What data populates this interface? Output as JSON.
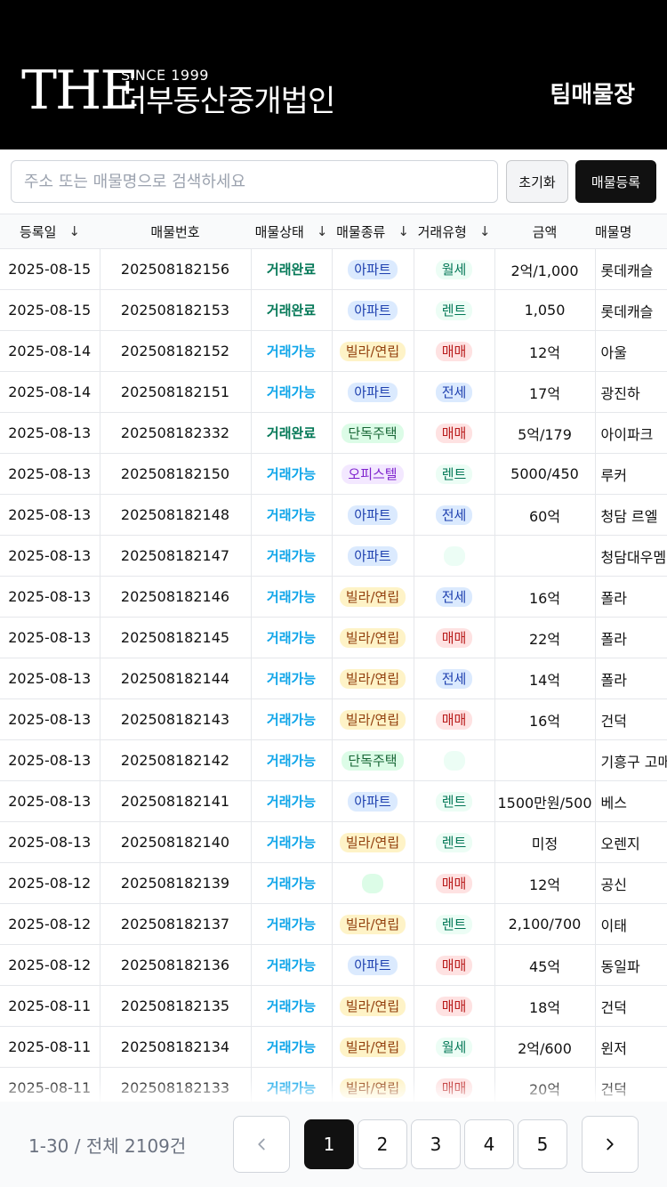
{
  "header": {
    "logo_mark": "THE",
    "logo_since": "SINCE 1999",
    "logo_name": "더부동산중개법인",
    "title": "팀매물장"
  },
  "toolbar": {
    "search_placeholder": "주소 또는 매물명으로 검색하세요",
    "reset_label": "초기화",
    "add_label": "매물등록"
  },
  "table": {
    "columns": [
      {
        "label": "등록일",
        "sort_icon": "arrow-down-icon"
      },
      {
        "label": "매물번호"
      },
      {
        "label": "매물상태",
        "sort_icon": "arrow-down-icon"
      },
      {
        "label": "매물종류",
        "sort_icon": "arrow-down-icon"
      },
      {
        "label": "거래유형",
        "sort_icon": "arrow-down-icon"
      },
      {
        "label": "금액"
      },
      {
        "label": "매물명"
      }
    ],
    "rows": [
      {
        "date": "2025-08-15",
        "id": "202508182156",
        "status": "거래완료",
        "kind": "아파트",
        "type": "월세",
        "price": "2억/1,000",
        "name": "롯데캐슬"
      },
      {
        "date": "2025-08-15",
        "id": "202508182153",
        "status": "거래완료",
        "kind": "아파트",
        "type": "렌트",
        "price": "1,050",
        "name": "롯데캐슬"
      },
      {
        "date": "2025-08-14",
        "id": "202508182152",
        "status": "거래가능",
        "kind": "빌라/연립",
        "type": "매매",
        "price": "12억",
        "name": "아울"
      },
      {
        "date": "2025-08-14",
        "id": "202508182151",
        "status": "거래가능",
        "kind": "아파트",
        "type": "전세",
        "price": "17억",
        "name": "광진하"
      },
      {
        "date": "2025-08-13",
        "id": "202508182332",
        "status": "거래완료",
        "kind": "단독주택",
        "type": "매매",
        "price": "5억/179",
        "name": "아이파크"
      },
      {
        "date": "2025-08-13",
        "id": "202508182150",
        "status": "거래가능",
        "kind": "오피스텔",
        "type": "렌트",
        "price": "5000/450",
        "name": "루커"
      },
      {
        "date": "2025-08-13",
        "id": "202508182148",
        "status": "거래가능",
        "kind": "아파트",
        "type": "전세",
        "price": "60억",
        "name": "청담 르엘"
      },
      {
        "date": "2025-08-13",
        "id": "202508182147",
        "status": "거래가능",
        "kind": "아파트",
        "type": "",
        "price": "",
        "name": "청담대우멤버"
      },
      {
        "date": "2025-08-13",
        "id": "202508182146",
        "status": "거래가능",
        "kind": "빌라/연립",
        "type": "전세",
        "price": "16억",
        "name": "폴라"
      },
      {
        "date": "2025-08-13",
        "id": "202508182145",
        "status": "거래가능",
        "kind": "빌라/연립",
        "type": "매매",
        "price": "22억",
        "name": "폴라"
      },
      {
        "date": "2025-08-13",
        "id": "202508182144",
        "status": "거래가능",
        "kind": "빌라/연립",
        "type": "전세",
        "price": "14억",
        "name": "폴라"
      },
      {
        "date": "2025-08-13",
        "id": "202508182143",
        "status": "거래가능",
        "kind": "빌라/연립",
        "type": "매매",
        "price": "16억",
        "name": "건덕"
      },
      {
        "date": "2025-08-13",
        "id": "202508182142",
        "status": "거래가능",
        "kind": "단독주택",
        "type": "",
        "price": "",
        "name": "기흥구 고매"
      },
      {
        "date": "2025-08-13",
        "id": "202508182141",
        "status": "거래가능",
        "kind": "아파트",
        "type": "렌트",
        "price": "1500만원/500",
        "name": "베스"
      },
      {
        "date": "2025-08-13",
        "id": "202508182140",
        "status": "거래가능",
        "kind": "빌라/연립",
        "type": "렌트",
        "price": "미정",
        "name": "오렌지"
      },
      {
        "date": "2025-08-12",
        "id": "202508182139",
        "status": "거래가능",
        "kind": "",
        "type": "매매",
        "price": "12억",
        "name": "공신"
      },
      {
        "date": "2025-08-12",
        "id": "202508182137",
        "status": "거래가능",
        "kind": "빌라/연립",
        "type": "렌트",
        "price": "2,100/700",
        "name": "이태"
      },
      {
        "date": "2025-08-12",
        "id": "202508182136",
        "status": "거래가능",
        "kind": "아파트",
        "type": "매매",
        "price": "45억",
        "name": "동일파"
      },
      {
        "date": "2025-08-11",
        "id": "202508182135",
        "status": "거래가능",
        "kind": "빌라/연립",
        "type": "매매",
        "price": "18억",
        "name": "건덕"
      },
      {
        "date": "2025-08-11",
        "id": "202508182134",
        "status": "거래가능",
        "kind": "빌라/연립",
        "type": "월세",
        "price": "2억/600",
        "name": "윈저"
      },
      {
        "date": "2025-08-11",
        "id": "202508182133",
        "status": "거래가능",
        "kind": "빌라/연립",
        "type": "매매",
        "price": "20억",
        "name": "건덕"
      }
    ]
  },
  "pagination": {
    "count_text": "1-30 / 전체 2109건",
    "pages": [
      "1",
      "2",
      "3",
      "4",
      "5"
    ],
    "current": "1",
    "prev_icon": "chevron-left-icon",
    "next_icon": "chevron-right-icon"
  },
  "colors": {
    "header_bg": "#000000",
    "status_done": "#047857",
    "status_available": "#0ea5e9",
    "primary_button": "#111111"
  }
}
